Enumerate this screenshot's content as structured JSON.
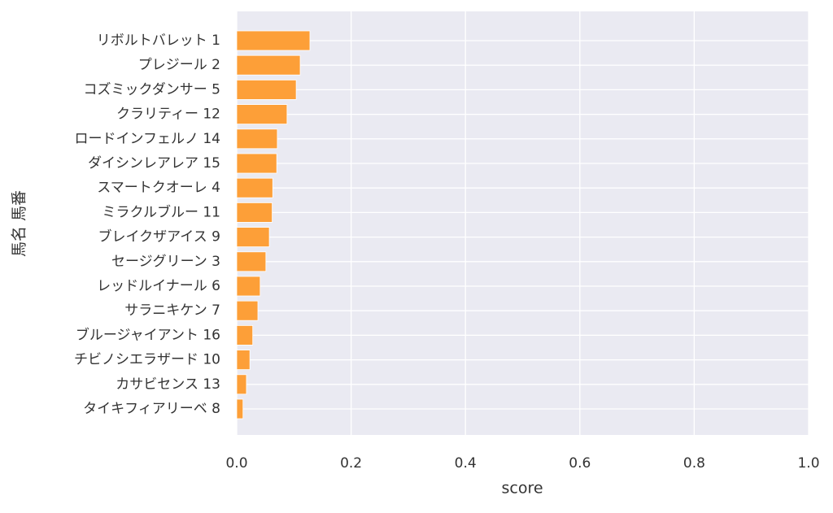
{
  "chart_data": {
    "type": "barh",
    "categories": [
      "リボルトバレット 1",
      "プレジール 2",
      "コズミックダンサー 5",
      "クラリティー 12",
      "ロードインフェルノ 14",
      "ダイシンレアレア 15",
      "スマートクオーレ 4",
      "ミラクルブルー 11",
      "ブレイクザアイス 9",
      "セージグリーン 3",
      "レッドルイナール 6",
      "サラニキケン 7",
      "ブルージャイアント 16",
      "チビノシエラザード 10",
      "カサビセンス 13",
      "タイキフィアリーベ 8"
    ],
    "values": [
      0.128,
      0.111,
      0.104,
      0.088,
      0.071,
      0.07,
      0.063,
      0.062,
      0.057,
      0.051,
      0.041,
      0.037,
      0.028,
      0.023,
      0.017,
      0.011
    ],
    "color": "#fd9f38",
    "xlabel": "score",
    "ylabel": "馬名 馬番",
    "xlim": [
      0,
      1
    ],
    "xticks": [
      {
        "value": 0,
        "label": "0.0"
      },
      0.2,
      0.4,
      0.6,
      0.8,
      {
        "value": 1,
        "label": "1.0"
      }
    ],
    "grid": true
  }
}
